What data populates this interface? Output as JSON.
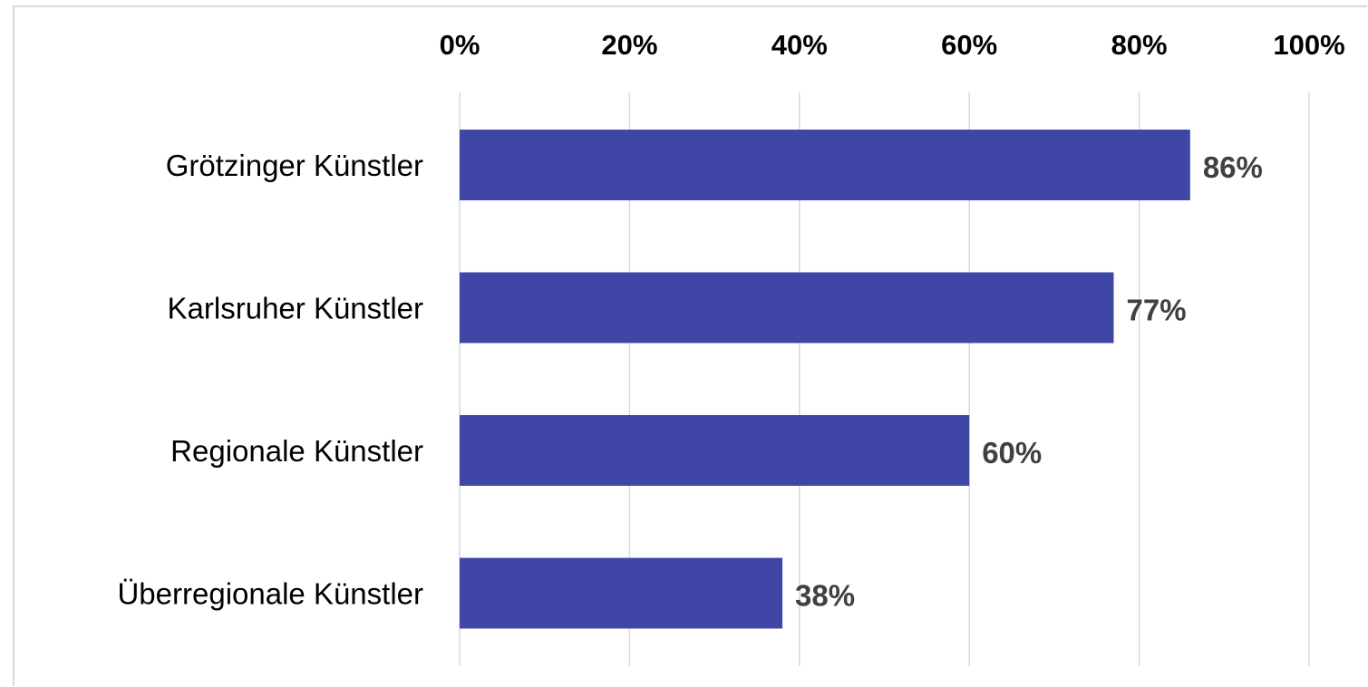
{
  "chart_data": {
    "type": "bar",
    "orientation": "horizontal",
    "categories": [
      "Grötzinger Künstler",
      "Karlsruher Künstler",
      "Regionale Künstler",
      "Überregionale Künstler"
    ],
    "values": [
      86,
      77,
      60,
      38
    ],
    "value_labels": [
      "86%",
      "77%",
      "60%",
      "38%"
    ],
    "xlim": [
      0,
      100
    ],
    "x_ticks": [
      0,
      20,
      40,
      60,
      80,
      100
    ],
    "x_tick_labels": [
      "0%",
      "20%",
      "40%",
      "60%",
      "80%",
      "100%"
    ],
    "x_axis_position": "top",
    "grid": true,
    "bar_color": "#3f46a6",
    "grid_color": "#d9d9d9",
    "title": "",
    "xlabel": "",
    "ylabel": ""
  }
}
